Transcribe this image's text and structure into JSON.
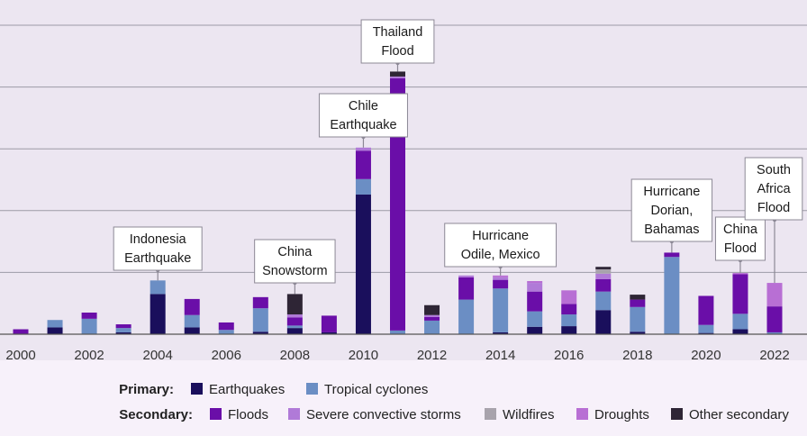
{
  "chart_data": {
    "type": "bar",
    "stacked": true,
    "x_ticks": [
      "2000",
      "2002",
      "2004",
      "2006",
      "2008",
      "2010",
      "2012",
      "2014",
      "2016",
      "2018",
      "2020",
      "2022"
    ],
    "categories": [
      "2000",
      "2001",
      "2002",
      "2003",
      "2004",
      "2005",
      "2006",
      "2007",
      "2008",
      "2009",
      "2010",
      "2011",
      "2012",
      "2013",
      "2014",
      "2015",
      "2016",
      "2017",
      "2018",
      "2019",
      "2020",
      "2021",
      "2022"
    ],
    "ylim": [
      0,
      50
    ],
    "grid": true,
    "series": [
      {
        "key": "earthquakes",
        "name": "Earthquakes",
        "group": "primary",
        "color": "#1a0f5c",
        "values": [
          0,
          1.1,
          0,
          0.3,
          6.5,
          1.1,
          0,
          0.4,
          1.0,
          0.3,
          22.6,
          0,
          0,
          0,
          0.3,
          1.2,
          1.3,
          3.9,
          0.4,
          0,
          0.2,
          0.8,
          0
        ]
      },
      {
        "key": "tropical_cyclones",
        "name": "Tropical cyclones",
        "group": "primary",
        "color": "#6b8ec4",
        "values": [
          0,
          1.2,
          2.5,
          0.7,
          2.2,
          2.0,
          0.7,
          3.8,
          0.4,
          0,
          2.5,
          0.6,
          2.2,
          5.6,
          7.1,
          2.5,
          1.9,
          3.0,
          4.0,
          12.5,
          1.3,
          2.5,
          0.3
        ]
      },
      {
        "key": "floods",
        "name": "Floods",
        "group": "secondary",
        "color": "#6a0ea8",
        "values": [
          0.8,
          0,
          1.0,
          0.6,
          0,
          2.6,
          1.2,
          1.8,
          1.3,
          2.7,
          4.6,
          40.8,
          0.6,
          3.6,
          1.4,
          3.2,
          1.7,
          2.0,
          1.2,
          0.7,
          4.7,
          6.4,
          4.2
        ]
      },
      {
        "key": "severe_convective_storms",
        "name": "Severe convective storms",
        "group": "secondary",
        "color": "#b07ad8",
        "values": [
          0,
          0,
          0,
          0,
          0,
          0,
          0,
          0,
          0.5,
          0,
          0.5,
          0.3,
          0.3,
          0.3,
          0.4,
          1.4,
          0,
          0.9,
          0,
          0,
          0,
          0,
          0
        ]
      },
      {
        "key": "wildfires",
        "name": "Wildfires",
        "group": "secondary",
        "color": "#a8a3ac",
        "values": [
          0,
          0,
          0,
          0,
          0,
          0,
          0,
          0,
          0,
          0,
          0,
          0,
          0,
          0,
          0,
          0,
          0,
          0.7,
          0,
          0,
          0,
          0,
          0
        ]
      },
      {
        "key": "droughts",
        "name": "Droughts",
        "group": "secondary",
        "color": "#b86fd4",
        "values": [
          0,
          0,
          0,
          0,
          0,
          0,
          0,
          0,
          0,
          0,
          0,
          0,
          0,
          0,
          0.3,
          0.3,
          2.2,
          0,
          0,
          0,
          0,
          0.2,
          3.8
        ]
      },
      {
        "key": "other_secondary",
        "name": "Other secondary",
        "group": "secondary",
        "color": "#2e2535",
        "values": [
          0,
          0,
          0,
          0,
          0,
          0,
          0,
          0,
          3.3,
          0,
          0,
          0.8,
          1.6,
          0,
          0,
          0,
          0,
          0.4,
          0.8,
          0,
          0,
          0,
          0
        ]
      }
    ],
    "annotations": [
      {
        "category": "2004",
        "lines": [
          "Indonesia",
          "Earthquake"
        ]
      },
      {
        "category": "2008",
        "lines": [
          "China",
          "Snowstorm"
        ]
      },
      {
        "category": "2010",
        "lines": [
          "Chile",
          "Earthquake"
        ]
      },
      {
        "category": "2011",
        "lines": [
          "Thailand",
          "Flood"
        ]
      },
      {
        "category": "2014",
        "lines": [
          "Hurricane",
          "Odile, Mexico"
        ]
      },
      {
        "category": "2019",
        "lines": [
          "Hurricane",
          "Dorian,",
          "Bahamas"
        ]
      },
      {
        "category": "2021",
        "lines": [
          "China",
          "Flood"
        ]
      },
      {
        "category": "2022",
        "lines": [
          "South",
          "Africa",
          "Flood"
        ]
      }
    ],
    "legend": {
      "primary_label": "Primary:",
      "secondary_label": "Secondary:",
      "primary_keys": [
        "earthquakes",
        "tropical_cyclones"
      ],
      "secondary_keys": [
        "floods",
        "severe_convective_storms",
        "wildfires",
        "droughts",
        "other_secondary"
      ]
    }
  }
}
